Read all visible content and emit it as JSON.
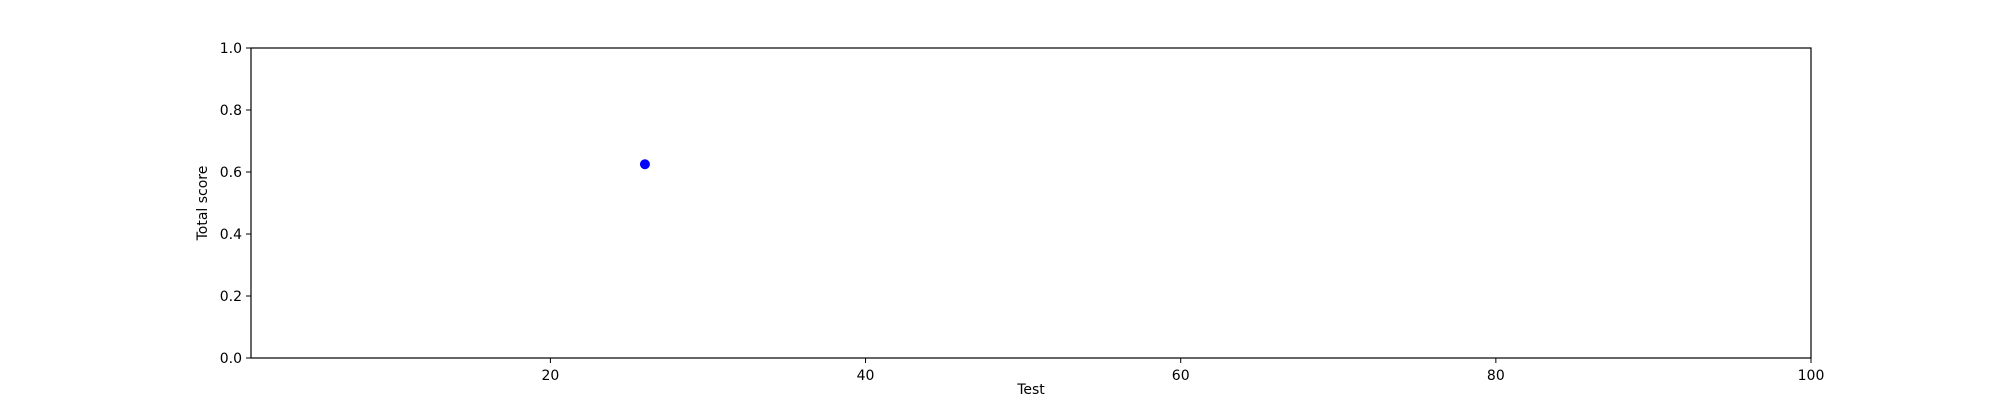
{
  "chart_data": {
    "type": "scatter",
    "title": "",
    "xlabel": "Test",
    "ylabel": "Total score",
    "xlim": [
      1,
      100
    ],
    "ylim": [
      0,
      1
    ],
    "x_ticks": [
      20,
      40,
      60,
      80,
      100
    ],
    "y_ticks": [
      0.0,
      0.2,
      0.4,
      0.6,
      0.8,
      1.0
    ],
    "grid": false,
    "series": [
      {
        "color": "#0000ff",
        "points": [
          {
            "x": 26,
            "y": 0.625
          }
        ]
      }
    ]
  }
}
